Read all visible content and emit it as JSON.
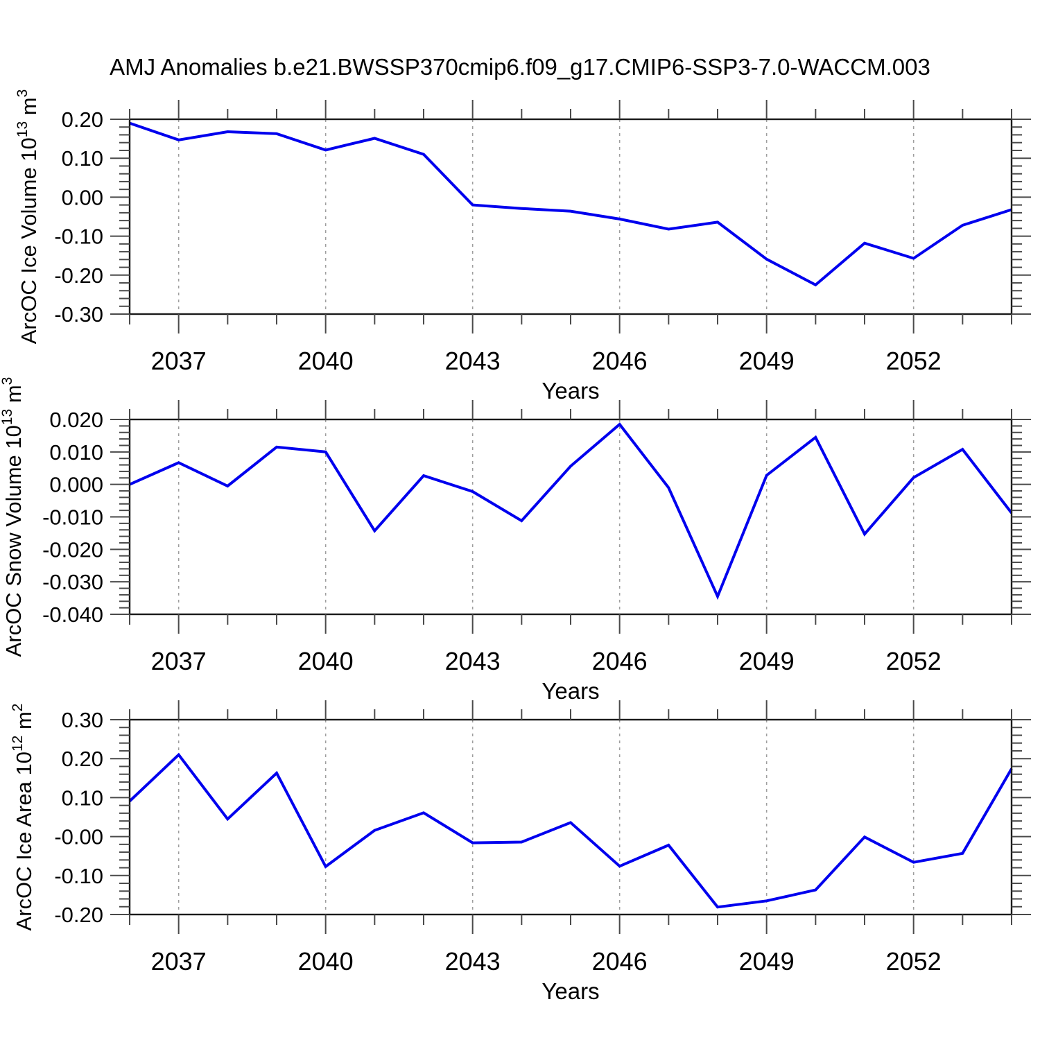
{
  "title": "AMJ Anomalies b.e21.BWSSP370cmip6.f09_g17.CMIP6-SSP3-7.0-WACCM.003",
  "colors": {
    "line": "#0000ee",
    "axis": "#1a1a1a",
    "tick": "#4a4a4a",
    "grid": "#9e9e9e",
    "text": "#000000"
  },
  "chart_data": {
    "type": "line",
    "title": "AMJ Anomalies b.e21.BWSSP370cmip6.f09_g17.CMIP6-SSP3-7.0-WACCM.003",
    "xlabel": "Years",
    "x": [
      2036,
      2037,
      2038,
      2039,
      2040,
      2041,
      2042,
      2043,
      2044,
      2045,
      2046,
      2047,
      2048,
      2049,
      2050,
      2051,
      2052,
      2053,
      2054
    ],
    "xlim": [
      2036,
      2054
    ],
    "x_ticks_labeled": [
      2037,
      2040,
      2043,
      2046,
      2049,
      2052
    ],
    "x_tick_minor_every_years": 1,
    "grid": "vertical-dashed-at-labeled-years",
    "legend": "none",
    "panels": [
      {
        "name": "ice-volume",
        "ylabel_prefix": "ArcOC Ice Volume 10",
        "ylabel_sup": "13",
        "ylabel_unit": " m",
        "ylabel_unit_sup": "3",
        "ylim": [
          -0.3,
          0.2
        ],
        "ytick_major": 0.1,
        "ytick_minor": 0.02,
        "ydecimals": 2,
        "values": [
          0.19,
          0.147,
          0.168,
          0.163,
          0.121,
          0.151,
          0.11,
          -0.02,
          -0.029,
          -0.036,
          -0.056,
          -0.082,
          -0.064,
          -0.159,
          -0.225,
          -0.118,
          -0.157,
          -0.072,
          -0.032
        ]
      },
      {
        "name": "snow-volume",
        "ylabel_prefix": "ArcOC Snow Volume 10",
        "ylabel_sup": "13",
        "ylabel_unit": " m",
        "ylabel_unit_sup": "3",
        "ylim": [
          -0.04,
          0.02
        ],
        "ytick_major": 0.01,
        "ytick_minor": 0.002,
        "ydecimals": 3,
        "values": [
          0.0,
          0.0067,
          -0.0005,
          0.0115,
          0.01,
          -0.0143,
          0.0027,
          -0.0022,
          -0.0112,
          0.0056,
          0.0185,
          -0.001,
          -0.0345,
          0.0028,
          0.0145,
          -0.0153,
          0.0021,
          0.0108,
          -0.0088
        ]
      },
      {
        "name": "ice-area",
        "ylabel_prefix": "ArcOC Ice Area 10",
        "ylabel_sup": "12",
        "ylabel_unit": " m",
        "ylabel_unit_sup": "2",
        "ylim": [
          -0.2,
          0.3
        ],
        "ytick_major": 0.1,
        "ytick_minor": 0.02,
        "ydecimals": 2,
        "values": [
          0.091,
          0.21,
          0.045,
          0.163,
          -0.077,
          0.016,
          0.061,
          -0.016,
          -0.014,
          0.036,
          -0.076,
          -0.022,
          -0.181,
          -0.165,
          -0.137,
          -0.001,
          -0.066,
          -0.043,
          0.174
        ]
      }
    ]
  }
}
